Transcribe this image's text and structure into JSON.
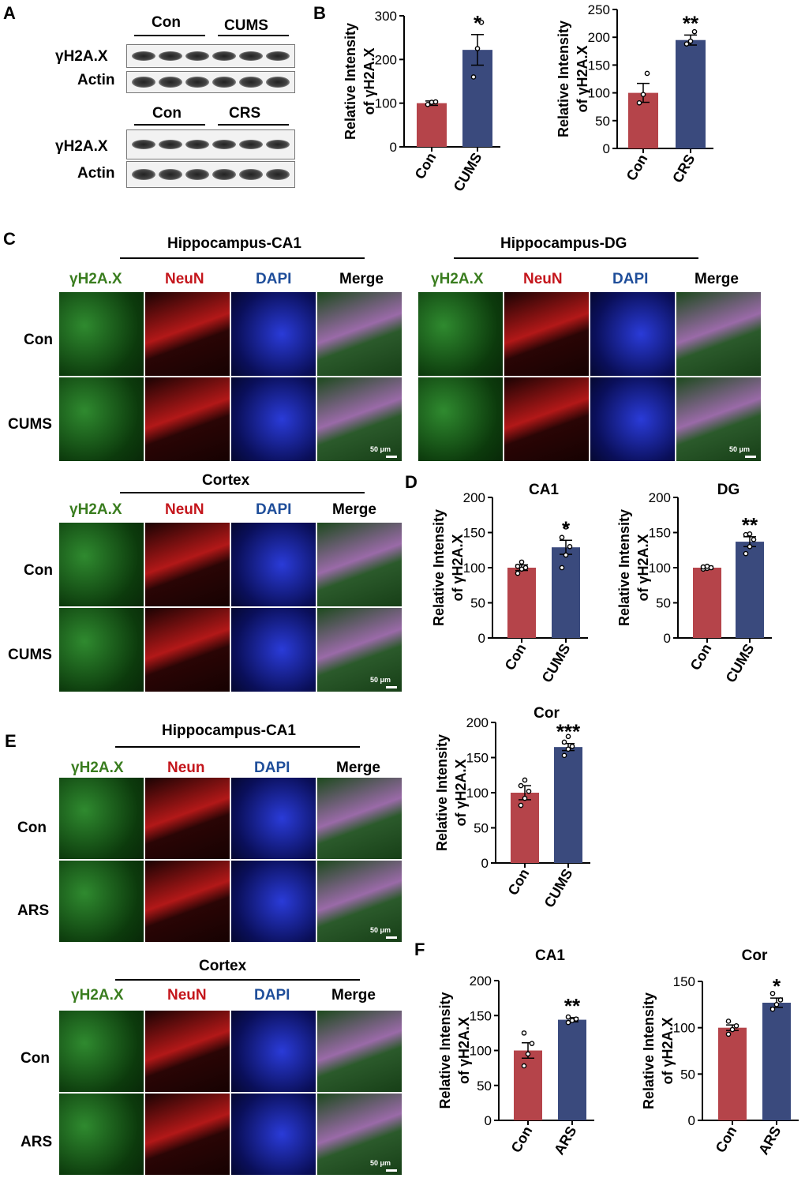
{
  "panels": {
    "A": "A",
    "B": "B",
    "C": "C",
    "D": "D",
    "E": "E",
    "F": "F"
  },
  "western": {
    "top_groups": [
      "Con",
      "CUMS"
    ],
    "bottom_groups": [
      "Con",
      "CRS"
    ],
    "row_labels": [
      "γH2A.X",
      "Actin",
      "γH2A.X",
      "Actin"
    ]
  },
  "micro": {
    "channels": [
      "γH2A.X",
      "NeuN",
      "DAPI",
      "Merge"
    ],
    "channels_E": [
      "γH2A.X",
      "Neun",
      "DAPI",
      "Merge"
    ],
    "regions": {
      "ca1": "Hippocampus-CA1",
      "dg": "Hippocampus-DG",
      "cortex": "Cortex"
    },
    "rows_C": [
      "Con",
      "CUMS"
    ],
    "rows_E": [
      "Con",
      "ARS"
    ],
    "scale_label": "50 μm",
    "colors": {
      "green": "#3a7d1f",
      "red": "#c4161c",
      "blue": "#1f4e9a"
    }
  },
  "chart_data": [
    {
      "id": "B1",
      "type": "bar",
      "title": "",
      "ylabel": "Relative Intensity of γH2A.X",
      "categories": [
        "Con",
        "CUMS"
      ],
      "values": [
        100,
        222
      ],
      "errors": [
        5,
        35
      ],
      "points": [
        [
          97,
          102,
          103
        ],
        [
          160,
          225,
          285
        ]
      ],
      "ylim": [
        0,
        300
      ],
      "yticks": [
        0,
        100,
        200,
        300
      ],
      "significance": [
        "",
        "*"
      ]
    },
    {
      "id": "B2",
      "type": "bar",
      "title": "",
      "ylabel": "Relative Intensity of γH2A.X",
      "categories": [
        "Con",
        "CRS"
      ],
      "values": [
        100,
        195
      ],
      "errors": [
        17,
        9
      ],
      "points": [
        [
          82,
          97,
          135
        ],
        [
          188,
          193,
          210
        ]
      ],
      "ylim": [
        0,
        250
      ],
      "yticks": [
        0,
        50,
        100,
        150,
        200,
        250
      ],
      "significance": [
        "",
        "**"
      ]
    },
    {
      "id": "D1",
      "type": "bar",
      "title": "CA1",
      "ylabel": "Relative Intensity of γH2A.X",
      "categories": [
        "Con",
        "CUMS"
      ],
      "values": [
        100,
        129
      ],
      "errors": [
        4,
        10
      ],
      "points": [
        [
          92,
          98,
          100,
          102,
          108
        ],
        [
          100,
          118,
          130,
          143,
          158
        ]
      ],
      "ylim": [
        0,
        200
      ],
      "yticks": [
        0,
        50,
        100,
        150,
        200
      ],
      "significance": [
        "",
        "*"
      ]
    },
    {
      "id": "D2",
      "type": "bar",
      "title": "DG",
      "ylabel": "Relative Intensity of γH2A.X",
      "categories": [
        "Con",
        "CUMS"
      ],
      "values": [
        100,
        137
      ],
      "errors": [
        2,
        7
      ],
      "points": [
        [
          98,
          99,
          100,
          101,
          102
        ],
        [
          120,
          130,
          140,
          147,
          148
        ]
      ],
      "ylim": [
        0,
        200
      ],
      "yticks": [
        0,
        50,
        100,
        150,
        200
      ],
      "significance": [
        "",
        "**"
      ]
    },
    {
      "id": "D3",
      "type": "bar",
      "title": "Cor",
      "ylabel": "Relative Intensity of γH2A.X",
      "categories": [
        "Con",
        "CUMS"
      ],
      "values": [
        100,
        165
      ],
      "errors": [
        10,
        5
      ],
      "points": [
        [
          82,
          92,
          102,
          110,
          118
        ],
        [
          153,
          162,
          166,
          172,
          180
        ]
      ],
      "ylim": [
        0,
        200
      ],
      "yticks": [
        0,
        50,
        100,
        150,
        200
      ],
      "significance": [
        "",
        "***"
      ]
    },
    {
      "id": "F1",
      "type": "bar",
      "title": "CA1",
      "ylabel": "Relative Intensity of γH2A.X",
      "categories": [
        "Con",
        "ARS"
      ],
      "values": [
        100,
        144
      ],
      "errors": [
        11,
        3
      ],
      "points": [
        [
          78,
          95,
          110,
          125
        ],
        [
          140,
          143,
          145,
          148
        ]
      ],
      "ylim": [
        0,
        200
      ],
      "yticks": [
        0,
        50,
        100,
        150,
        200
      ],
      "significance": [
        "",
        "**"
      ]
    },
    {
      "id": "F2",
      "type": "bar",
      "title": "Cor",
      "ylabel": "Relative Intensity of γH2A.X",
      "categories": [
        "Con",
        "ARS"
      ],
      "values": [
        100,
        127
      ],
      "errors": [
        3,
        5
      ],
      "points": [
        [
          93,
          98,
          102,
          107
        ],
        [
          120,
          125,
          130,
          137
        ]
      ],
      "ylim": [
        0,
        150
      ],
      "yticks": [
        0,
        50,
        100,
        150
      ],
      "significance": [
        "",
        "*"
      ]
    }
  ],
  "bar_colors": [
    "#b5444a",
    "#3a4a7d"
  ]
}
